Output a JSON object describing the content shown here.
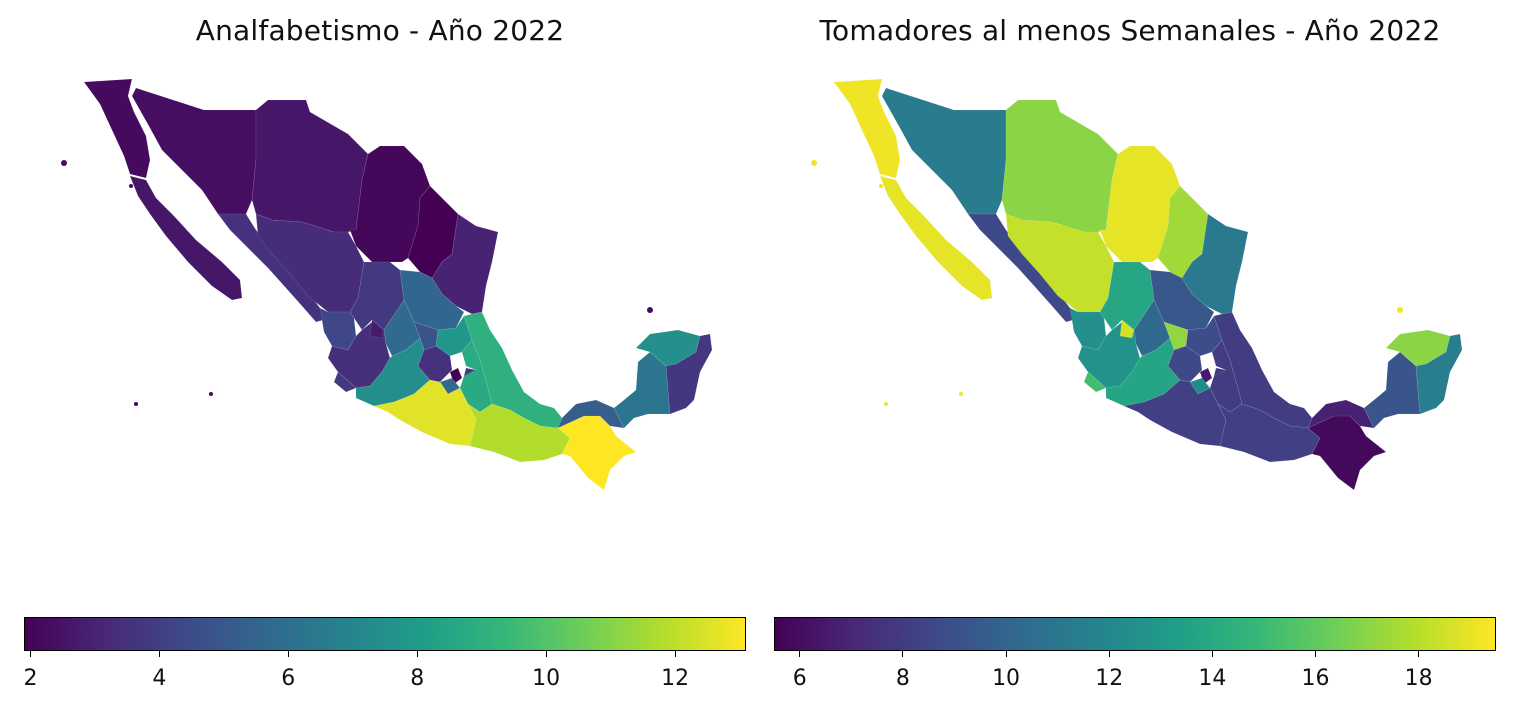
{
  "colormap": {
    "name": "viridis",
    "stops": [
      "#440154",
      "#482878",
      "#3e4989",
      "#31688e",
      "#26828e",
      "#1f9e89",
      "#35b779",
      "#6ece58",
      "#b5de2b",
      "#fde725"
    ]
  },
  "maps": [
    {
      "title": "Analfabetismo - Año 2022",
      "colorbar": {
        "min": 1.9,
        "max": 13.1,
        "ticks": [
          2,
          4,
          6,
          8,
          10,
          12
        ]
      },
      "regions": {
        "baja_california": 2.2,
        "baja_california_sur": 2.6,
        "sonora": 2.3,
        "chihuahua": 2.6,
        "coahuila": 2.1,
        "nuevo_leon": 1.9,
        "tamaulipas": 3.0,
        "sinaloa": 3.5,
        "durango": 3.3,
        "zacatecas": 3.8,
        "nayarit": 4.3,
        "jalisco": 3.4,
        "aguascalientes": 2.7,
        "san_luis_potosi": 5.6,
        "guanajuato": 5.8,
        "queretaro": 4.8,
        "hidalgo": 7.8,
        "colima": 3.8,
        "michoacan": 7.4,
        "mexico": 3.5,
        "cdmx": 1.7,
        "morelos": 5.8,
        "tlaxcala": 3.9,
        "puebla": 8.7,
        "veracruz": 9.0,
        "guerrero": 12.6,
        "oaxaca": 11.8,
        "chiapas": 13.1,
        "tabasco": 5.2,
        "campeche": 6.3,
        "yucatan": 7.5,
        "quintana_roo": 3.7
      }
    },
    {
      "title": "Tomadores al menos Semanales - Año 2022",
      "colorbar": {
        "min": 5.5,
        "max": 19.5,
        "ticks": [
          6,
          8,
          10,
          12,
          14,
          16,
          18
        ]
      },
      "regions": {
        "baja_california": 19.2,
        "baja_california_sur": 19.0,
        "sonora": 11.3,
        "chihuahua": 17.0,
        "coahuila": 19.0,
        "nuevo_leon": 17.5,
        "tamaulipas": 11.2,
        "sinaloa": 8.6,
        "durango": 18.3,
        "zacatecas": 13.8,
        "nayarit": 12.5,
        "jalisco": 12.6,
        "aguascalientes": 18.5,
        "san_luis_potosi": 9.3,
        "guanajuato": 10.2,
        "queretaro": 17.2,
        "hidalgo": 8.8,
        "colima": 15.2,
        "michoacan": 13.7,
        "mexico": 8.6,
        "cdmx": 6.5,
        "morelos": 12.2,
        "tlaxcala": 7.8,
        "puebla": 8.0,
        "veracruz": 8.0,
        "guerrero": 8.2,
        "oaxaca": 8.2,
        "chiapas": 5.8,
        "tabasco": 6.8,
        "campeche": 9.2,
        "yucatan": 17.0,
        "quintana_roo": 11.5
      }
    }
  ]
}
